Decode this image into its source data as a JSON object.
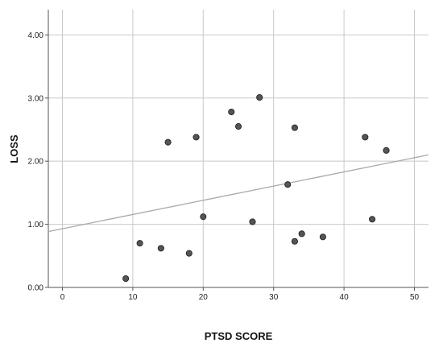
{
  "chart_data": {
    "type": "scatter",
    "xlabel": "PTSD SCORE",
    "ylabel": "LOSS",
    "xlim": [
      -2,
      52
    ],
    "ylim": [
      0,
      4.4
    ],
    "x_ticks": [
      "0",
      "10",
      "20",
      "30",
      "40",
      "50"
    ],
    "y_ticks": [
      "0.00",
      "1.00",
      "2.00",
      "3.00",
      "4.00"
    ],
    "grid": true,
    "points": [
      {
        "x": 9,
        "y": 0.14
      },
      {
        "x": 11,
        "y": 0.7
      },
      {
        "x": 14,
        "y": 0.62
      },
      {
        "x": 15,
        "y": 2.3
      },
      {
        "x": 18,
        "y": 0.54
      },
      {
        "x": 19,
        "y": 2.38
      },
      {
        "x": 20,
        "y": 1.12
      },
      {
        "x": 24,
        "y": 2.78
      },
      {
        "x": 25,
        "y": 2.55
      },
      {
        "x": 27,
        "y": 1.04
      },
      {
        "x": 28,
        "y": 3.01
      },
      {
        "x": 32,
        "y": 1.63
      },
      {
        "x": 33,
        "y": 2.53
      },
      {
        "x": 33,
        "y": 0.73
      },
      {
        "x": 34,
        "y": 0.85
      },
      {
        "x": 37,
        "y": 0.8
      },
      {
        "x": 43,
        "y": 2.38
      },
      {
        "x": 44,
        "y": 1.08
      },
      {
        "x": 46,
        "y": 2.17
      }
    ],
    "fit_line": {
      "intercept": 0.93,
      "slope": 0.0225
    },
    "colors": {
      "point": "#555555",
      "point_stroke": "#222222",
      "fit": "#a8a8a8",
      "grid": "#c8c8c8",
      "axis": "#555555"
    }
  }
}
